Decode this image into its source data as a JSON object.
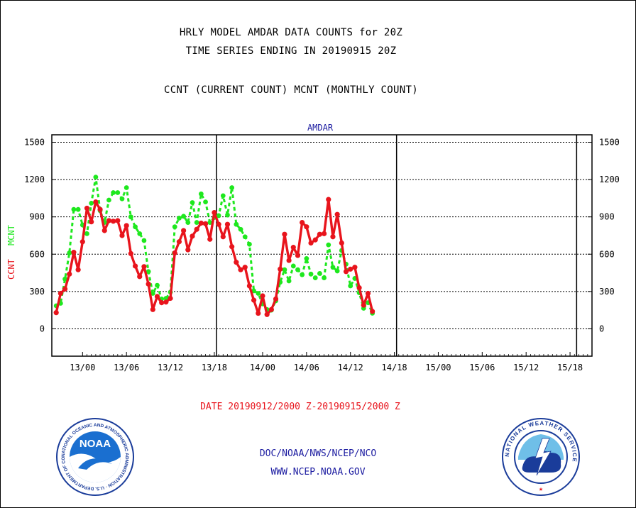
{
  "header": {
    "title_line1": "HRLY MODEL AMDAR DATA COUNTS for 20Z",
    "title_line2": "TIME SERIES ENDING IN 20190915 20Z",
    "subtitle": "CCNT (CURRENT COUNT) MCNT (MONTHLY COUNT)"
  },
  "footer": {
    "date_range": "DATE 20190912/2000 Z-20190915/2000 Z",
    "org": "DOC/NOAA/NWS/NCEP/NCO",
    "url": "WWW.NCEP.NOAA.GOV"
  },
  "logos": {
    "noaa_text": "NOAA",
    "noaa_ring": "NATIONAL OCEANIC AND ATMOSPHERIC ADMINISTRATION · U.S. DEPARTMENT OF COMMERCE ·",
    "nws_ring": "NATIONAL WEATHER SERVICE"
  },
  "chart_data": {
    "type": "line",
    "title": "AMDAR",
    "ylabel_left": [
      "CCNT",
      "MCNT"
    ],
    "ylim": [
      -220,
      1560
    ],
    "yticks": [
      0,
      300,
      600,
      900,
      1200,
      1500
    ],
    "xlim": [
      -7,
      116
    ],
    "xticks": [
      {
        "x": 0,
        "label": "13/00"
      },
      {
        "x": 10,
        "label": "13/06"
      },
      {
        "x": 20,
        "label": "13/12"
      },
      {
        "x": 30,
        "label": "13/18"
      },
      {
        "x": 41,
        "label": "14/00"
      },
      {
        "x": 51,
        "label": "14/06"
      },
      {
        "x": 61,
        "label": "14/12"
      },
      {
        "x": 71,
        "label": "14/18"
      },
      {
        "x": 81,
        "label": "15/00"
      },
      {
        "x": 91,
        "label": "15/06"
      },
      {
        "x": 101,
        "label": "15/12"
      },
      {
        "x": 111,
        "label": "15/18"
      }
    ],
    "day_dividers": [
      31,
      72,
      113
    ],
    "grid": "horizontal",
    "colors": {
      "ccnt": "#e8141c",
      "mcnt": "#1ee81e",
      "title": "#1a1aa0",
      "axis": "#000000"
    },
    "series": [
      {
        "name": "CCNT",
        "values": [
          130,
          285,
          320,
          440,
          615,
          475,
          700,
          970,
          860,
          1020,
          960,
          790,
          870,
          865,
          870,
          750,
          830,
          605,
          505,
          420,
          500,
          360,
          155,
          260,
          210,
          215,
          245,
          610,
          700,
          790,
          635,
          745,
          800,
          850,
          845,
          720,
          935,
          840,
          740,
          840,
          660,
          535,
          475,
          495,
          345,
          230,
          125,
          265,
          115,
          155,
          240,
          480,
          760,
          550,
          655,
          590,
          855,
          820,
          690,
          715,
          760,
          765,
          1040,
          740,
          920,
          690,
          460,
          480,
          495,
          330,
          190,
          285,
          140
        ]
      },
      {
        "name": "MCNT",
        "values": [
          185,
          205,
          400,
          610,
          960,
          960,
          835,
          765,
          1010,
          1220,
          950,
          855,
          1035,
          1095,
          1095,
          1045,
          1135,
          900,
          820,
          765,
          710,
          460,
          285,
          350,
          240,
          245,
          295,
          820,
          890,
          905,
          855,
          1015,
          855,
          1085,
          1020,
          855,
          895,
          910,
          1070,
          915,
          1135,
          840,
          800,
          740,
          680,
          305,
          285,
          200,
          155,
          150,
          225,
          375,
          475,
          385,
          505,
          475,
          435,
          565,
          440,
          410,
          445,
          410,
          675,
          495,
          465,
          630,
          520,
          345,
          405,
          290,
          165,
          210,
          125
        ]
      }
    ]
  }
}
